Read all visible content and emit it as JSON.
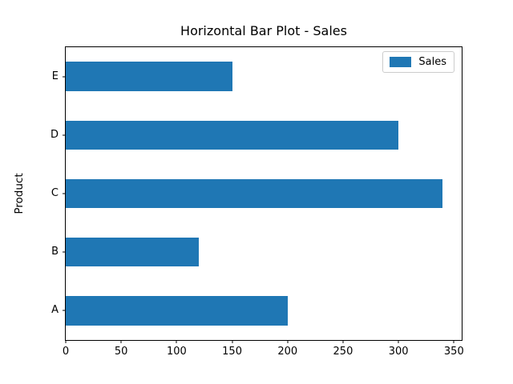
{
  "chart_data": {
    "type": "bar",
    "orientation": "horizontal",
    "title": "Horizontal Bar Plot - Sales",
    "xlabel": "",
    "ylabel": "Product",
    "categories": [
      "A",
      "B",
      "C",
      "D",
      "E"
    ],
    "series": [
      {
        "name": "Sales",
        "values": [
          200,
          120,
          340,
          300,
          150
        ]
      }
    ],
    "xticks": [
      0,
      50,
      100,
      150,
      200,
      250,
      300,
      350
    ],
    "xlim": [
      0,
      357
    ],
    "bar_thickness_fraction": 0.5,
    "grid": false,
    "legend": {
      "position": "upper right",
      "entries": [
        {
          "label": "Sales",
          "color": "#1f77b4"
        }
      ]
    },
    "colors": {
      "bar": "#1f77b4",
      "spine": "#000000",
      "text": "#000000",
      "legend_border": "#cccccc",
      "background": "#ffffff"
    }
  }
}
